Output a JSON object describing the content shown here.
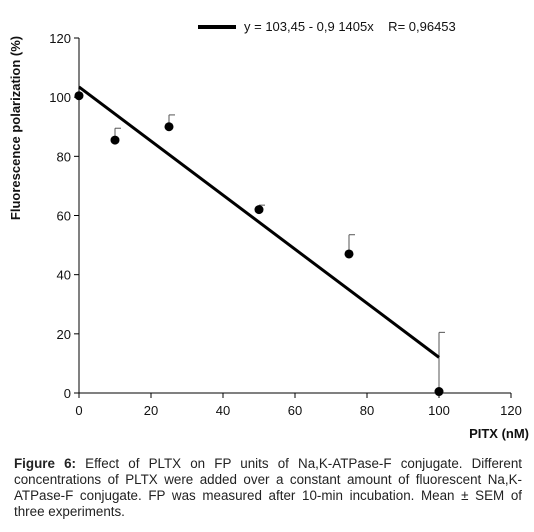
{
  "chart_data": {
    "type": "scatter",
    "xlabel": "PITX (nM)",
    "ylabel": "Fluorescence polarization (%)",
    "xlim": [
      0,
      120
    ],
    "ylim": [
      0,
      120
    ],
    "xticks": [
      0,
      20,
      40,
      60,
      80,
      100,
      120
    ],
    "yticks": [
      0,
      20,
      40,
      60,
      80,
      100,
      120
    ],
    "grid": false,
    "legend_position": "top-right",
    "legend_text": "y = 103,45 - 0,9 1405x    R= 0,96453",
    "points": [
      {
        "x": 0,
        "y": 100.5,
        "err": 0
      },
      {
        "x": 10,
        "y": 85.5,
        "err": 4
      },
      {
        "x": 25,
        "y": 90,
        "err": 4
      },
      {
        "x": 50,
        "y": 62,
        "err": 1.5
      },
      {
        "x": 75,
        "y": 47,
        "err": 6.5
      },
      {
        "x": 100,
        "y": 0.5,
        "err": 20
      }
    ],
    "fit_line": {
      "intercept": 103.45,
      "slope": -0.91405,
      "x_range": [
        0,
        100
      ]
    }
  },
  "caption": {
    "label": "Figure 6:",
    "text": " Effect of PLTX on FP units of Na,K-ATPase-F conjugate. Different concentrations of PLTX were added over a constant amount of fluorescent Na,K-ATPase-F conjugate. FP was measured after 10-min incubation. Mean ± SEM of three experiments."
  }
}
